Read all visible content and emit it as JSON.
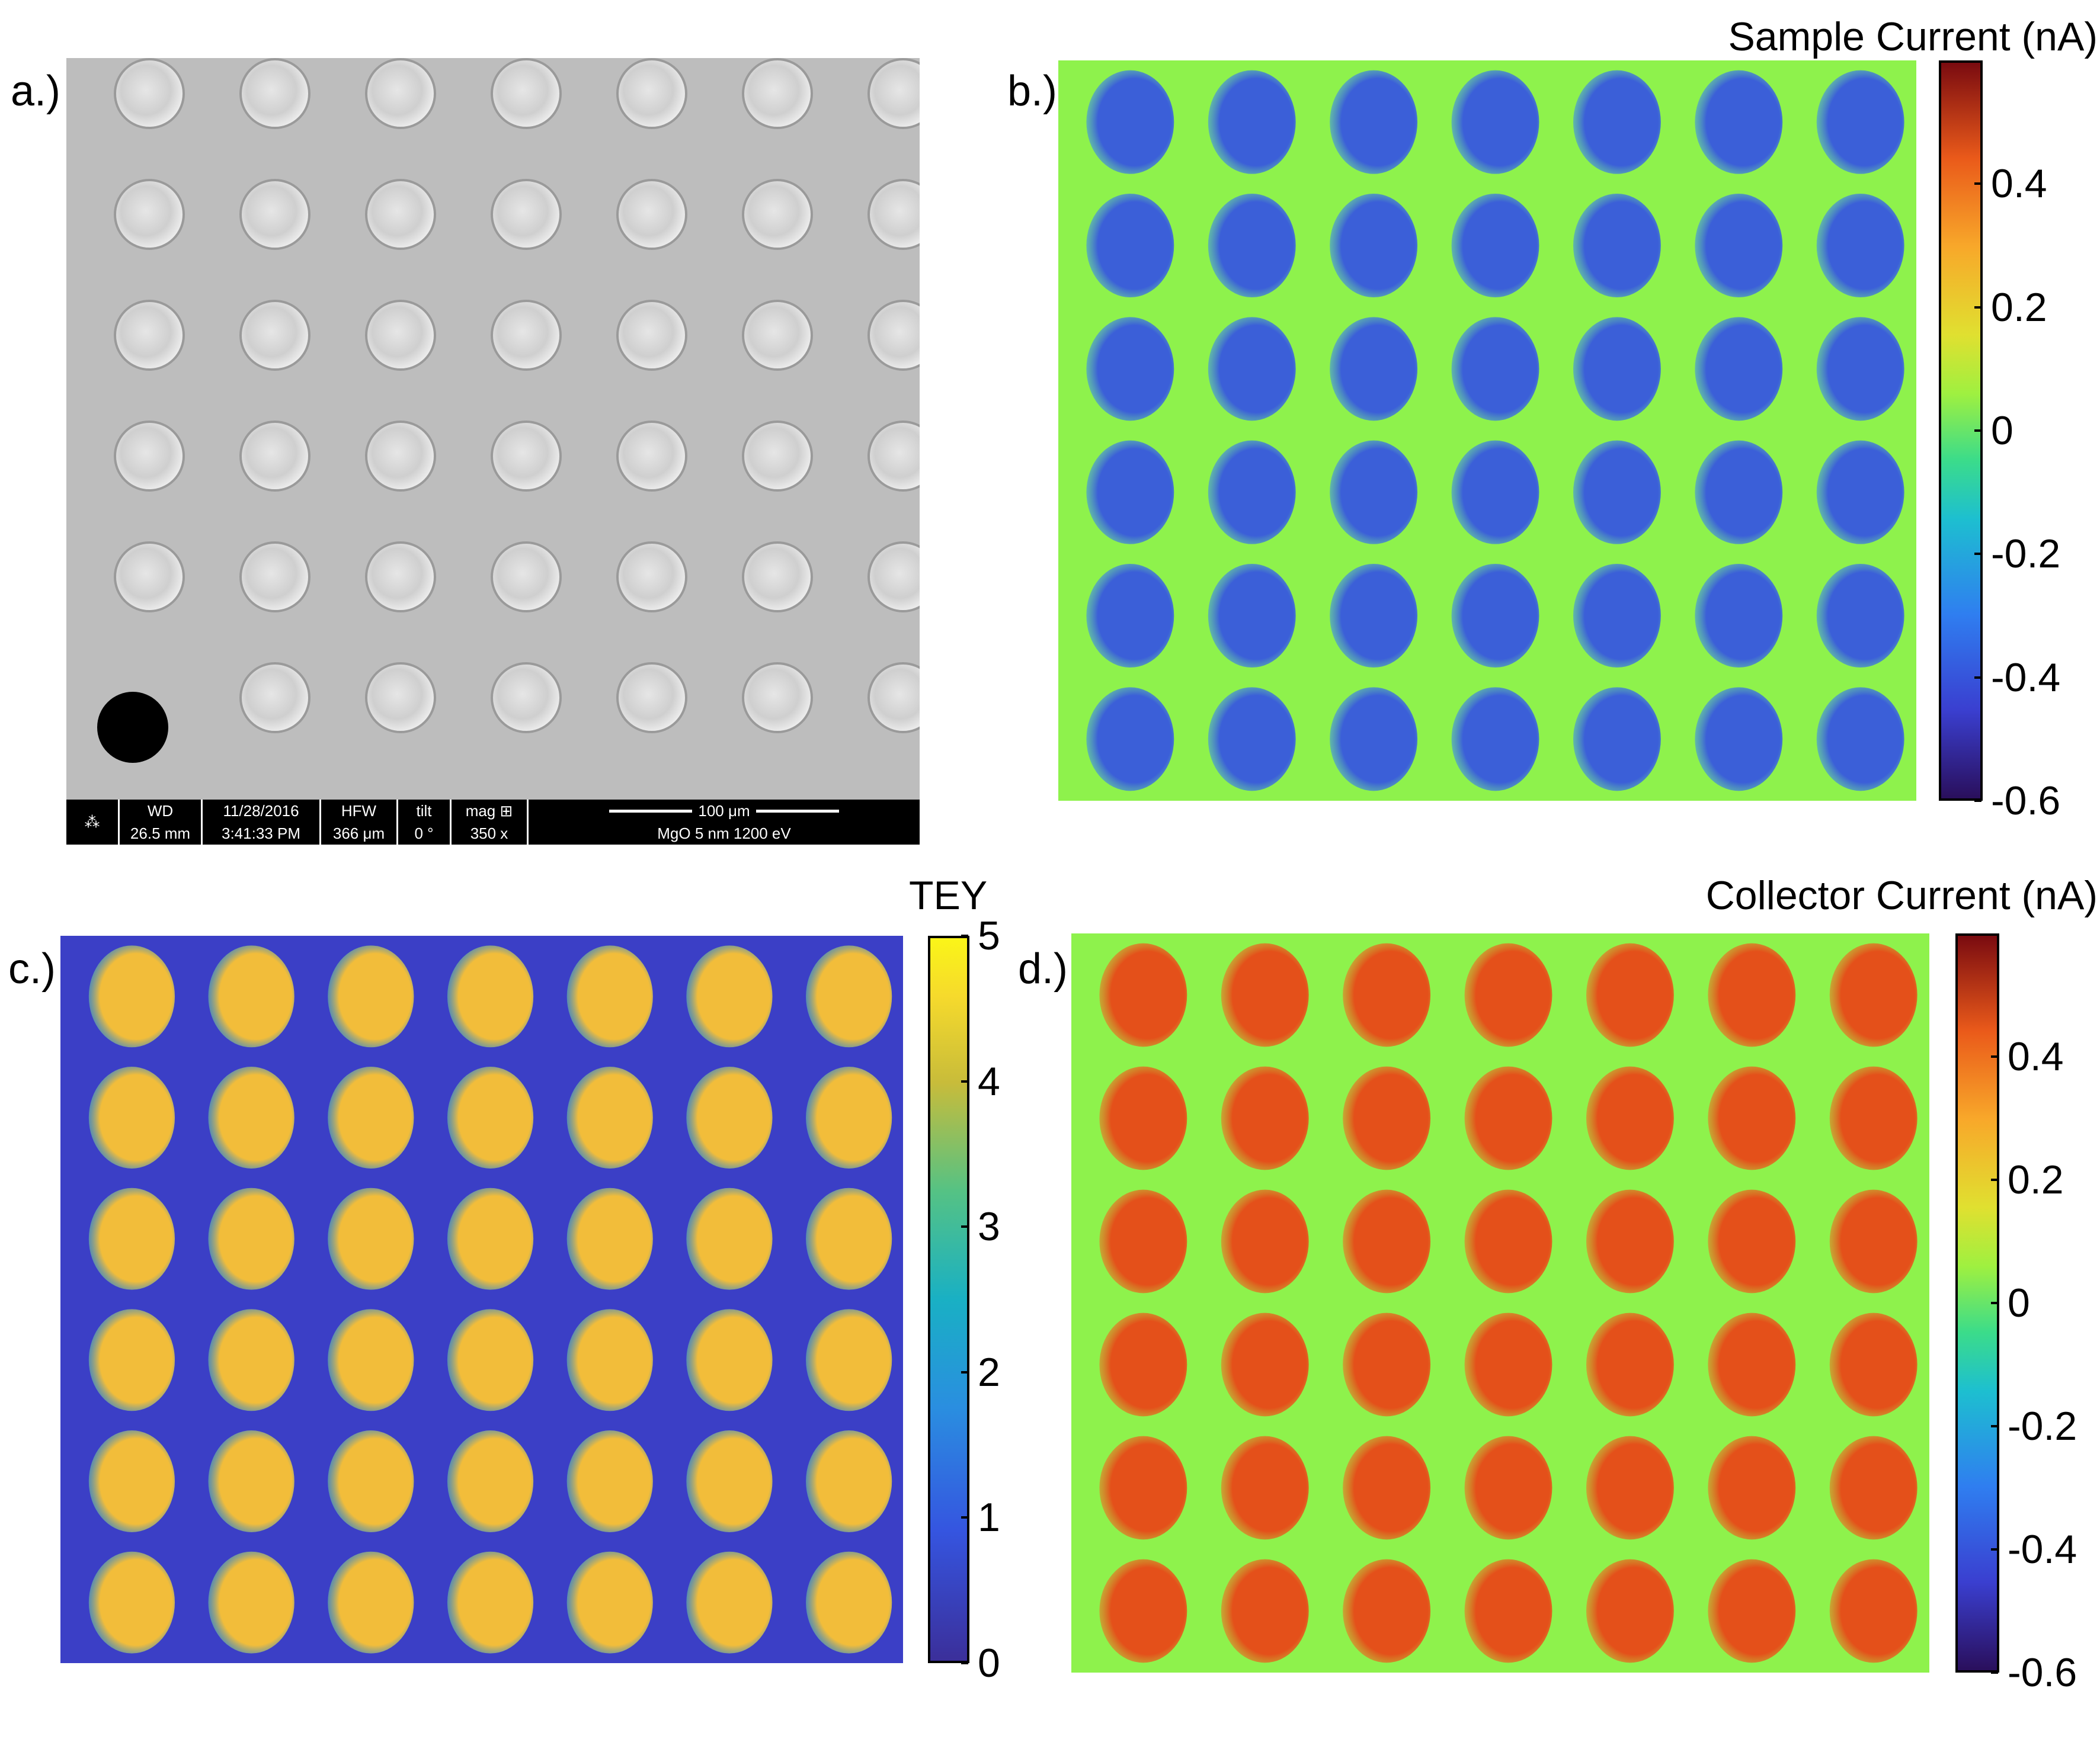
{
  "panels": {
    "a": {
      "label": "a.)",
      "sem_info": {
        "wd_label": "WD",
        "wd_value": "26.5 mm",
        "date": "11/28/2016",
        "time": "3:41:33 PM",
        "hfw_label": "HFW",
        "hfw_value": "366 μm",
        "tilt_label": "tilt",
        "tilt_value": "0 °",
        "mag_label": "mag",
        "mag_value": "350 x",
        "scalebar": "100 μm",
        "description": "MgO 5 nm 1200 eV"
      },
      "grid": {
        "rows": 6,
        "cols": 7
      }
    },
    "b": {
      "label": "b.)",
      "colorbar": {
        "title": "Sample Current (nA)",
        "ticks": [
          "0.4",
          "0.2",
          "0",
          "-0.2",
          "-0.4",
          "-0.6"
        ],
        "tick_values": [
          0.4,
          0.2,
          0,
          -0.2,
          -0.4,
          -0.6
        ],
        "range": [
          -0.6,
          0.6
        ],
        "colormap": "jet"
      },
      "background_value": -0.02,
      "spot_value": -0.42
    },
    "c": {
      "label": "c.)",
      "colorbar": {
        "title": "TEY",
        "ticks": [
          "5",
          "4",
          "3",
          "2",
          "1",
          "0"
        ],
        "tick_values": [
          5,
          4,
          3,
          2,
          1,
          0
        ],
        "range": [
          0,
          5
        ],
        "colormap": "parula"
      },
      "background_value": 0.4,
      "spot_value": 4.2
    },
    "d": {
      "label": "d.)",
      "colorbar": {
        "title": "Collector Current (nA)",
        "ticks": [
          "0.4",
          "0.2",
          "0",
          "-0.2",
          "-0.4",
          "-0.6"
        ],
        "tick_values": [
          0.4,
          0.2,
          0,
          -0.2,
          -0.4,
          -0.6
        ],
        "range": [
          -0.6,
          0.6
        ],
        "colormap": "jet"
      },
      "background_value": 0.04,
      "spot_value": 0.42
    }
  },
  "grid": {
    "rows": 6,
    "cols": 7
  },
  "colors": {
    "jet_background": "#8ef24c",
    "jet_spot_b": "#3b5fd8",
    "jet_spot_d": "#e4501a",
    "parula_background": "#3b3fc6",
    "parula_spot": "#f2bd3a",
    "sem_background": "#bdbdbd"
  }
}
